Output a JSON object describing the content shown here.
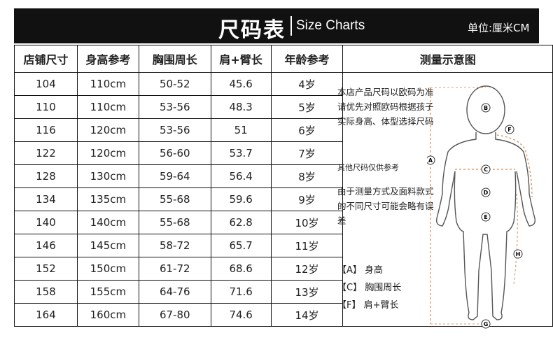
{
  "header": {
    "title": "尺码表",
    "subtitle": "Size Charts",
    "unit": "单位:厘米CM"
  },
  "table": {
    "headers": [
      "店铺尺寸",
      "身高参考",
      "胸围周长",
      "肩+臂长",
      "年龄参考",
      "测量示意图"
    ],
    "rows": [
      [
        "104",
        "110cm",
        "50-52",
        "45.6",
        "4岁"
      ],
      [
        "110",
        "110cm",
        "53-56",
        "48.3",
        "5岁"
      ],
      [
        "116",
        "120cm",
        "53-56",
        "51",
        "6岁"
      ],
      [
        "122",
        "120cm",
        "56-60",
        "53.7",
        "7岁"
      ],
      [
        "128",
        "130cm",
        "59-64",
        "56.4",
        "8岁"
      ],
      [
        "134",
        "135cm",
        "55-68",
        "59.6",
        "9岁"
      ],
      [
        "140",
        "140cm",
        "55-68",
        "62.8",
        "10岁"
      ],
      [
        "146",
        "145cm",
        "58-72",
        "65.7",
        "11岁"
      ],
      [
        "152",
        "150cm",
        "61-72",
        "68.6",
        "12岁"
      ],
      [
        "158",
        "155cm",
        "64-76",
        "71.6",
        "13岁"
      ],
      [
        "164",
        "160cm",
        "67-80",
        "74.6",
        "14岁"
      ]
    ]
  },
  "notes": {
    "note1": "本店产品尺码以欧码为准请优先对照欧码根据孩子实际身高、体型选择尺码",
    "note2": "其他尺码仅供参考",
    "note3": "由于测量方式及面料款式的不同尺寸可能会略有误差"
  },
  "legend": [
    "【A】 身高",
    "【C】 胸围周长",
    "【F】 肩+臂长"
  ],
  "markers": [
    "A",
    "B",
    "C",
    "D",
    "E",
    "F",
    "G",
    "H"
  ],
  "colors": {
    "header_bg": "#111111",
    "marker_line": "#e0a070"
  }
}
